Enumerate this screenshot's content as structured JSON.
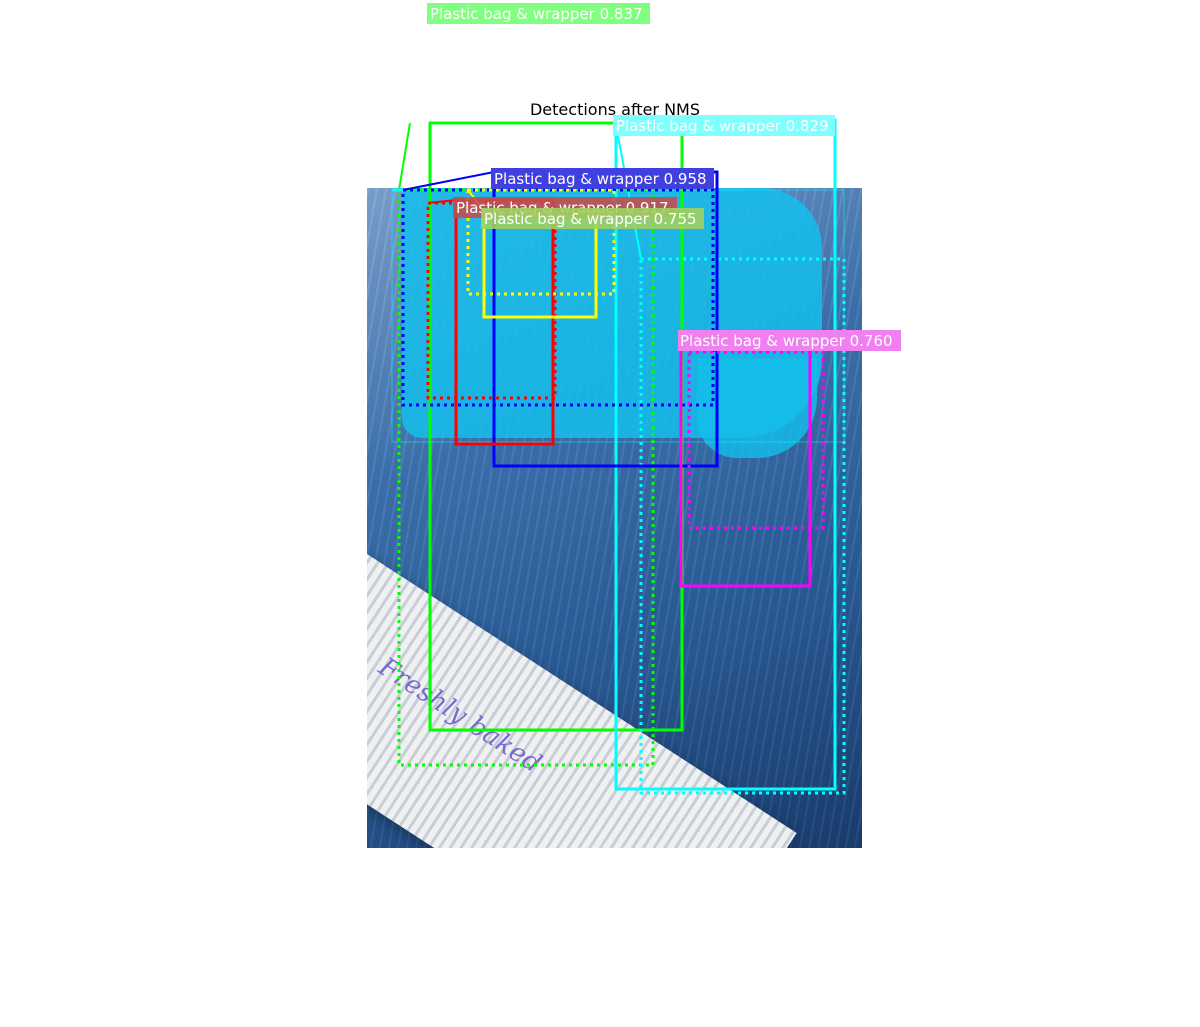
{
  "title": "Detections after NMS",
  "photo_text": "Freshly baked",
  "detections": [
    {
      "label": "Plastic bag & wrapper",
      "score": "0.837",
      "color": "#00ff00",
      "bg": "#80ff80"
    },
    {
      "label": "Plastic bag & wrapper",
      "score": "0.829",
      "color": "#00ffff",
      "bg": "#80ffff"
    },
    {
      "label": "Plastic bag & wrapper",
      "score": "0.958",
      "color": "#0000ff",
      "bg": "#4040e0"
    },
    {
      "label": "Plastic bag & wrapper",
      "score": "0.917",
      "color": "#ff0000",
      "bg": "#c05050"
    },
    {
      "label": "Plastic bag & wrapper",
      "score": "0.755",
      "color": "#ffff00",
      "bg": "#a0d060"
    },
    {
      "label": "Plastic bag & wrapper",
      "score": "0.760",
      "color": "#ff00ff",
      "bg": "#f080f0"
    }
  ]
}
